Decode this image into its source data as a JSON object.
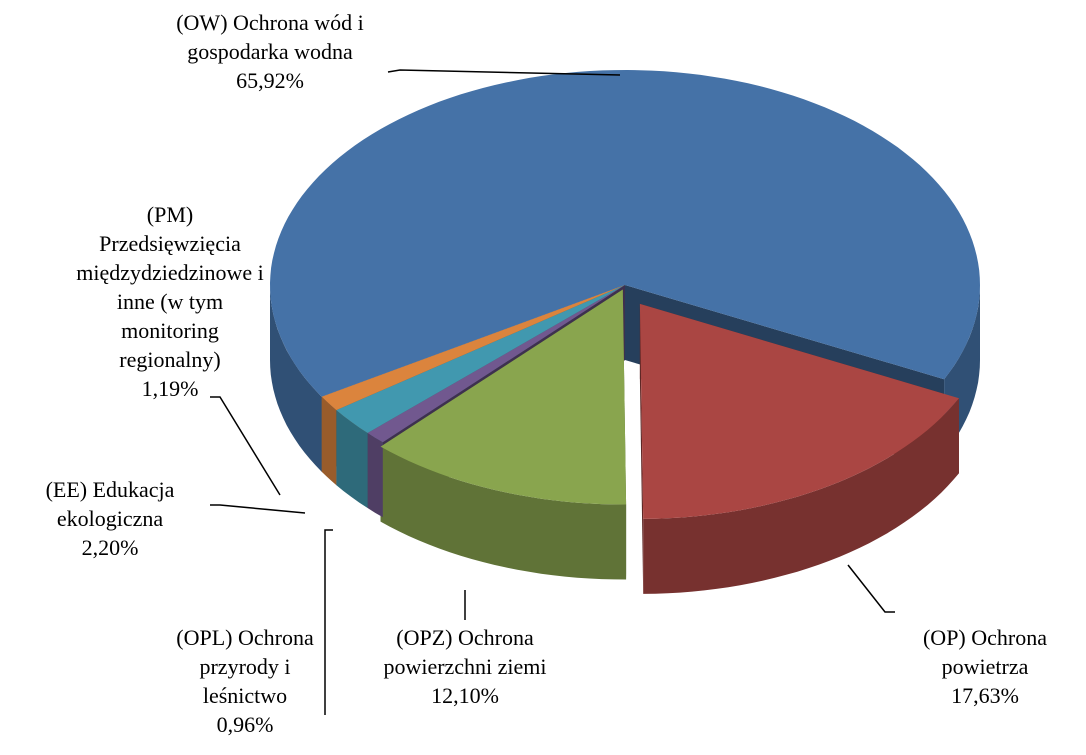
{
  "chart_data": {
    "type": "pie",
    "categories": [
      "(OW)  Ochrona wód i gospodarka wodna",
      "(OP)   Ochrona powietrza",
      "(OPZ) Ochrona powierzchni ziemi",
      "(OPL) Ochrona przyrody i leśnictwo",
      "(EE)    Edukacja ekologiczna",
      "(PM) Przedsięwzięcia międzydziedzinowe i inne  (w tym monitoring regionalny)"
    ],
    "values": [
      65.92,
      17.63,
      12.1,
      0.96,
      2.2,
      1.19
    ],
    "value_labels": [
      "65,92%",
      "17,63%",
      "12,10%",
      "0,96%",
      "2,20%",
      "1,19%"
    ],
    "colors": [
      "#4572a7",
      "#aa4643",
      "#89a54e",
      "#71588f",
      "#4198af",
      "#db843d"
    ]
  }
}
